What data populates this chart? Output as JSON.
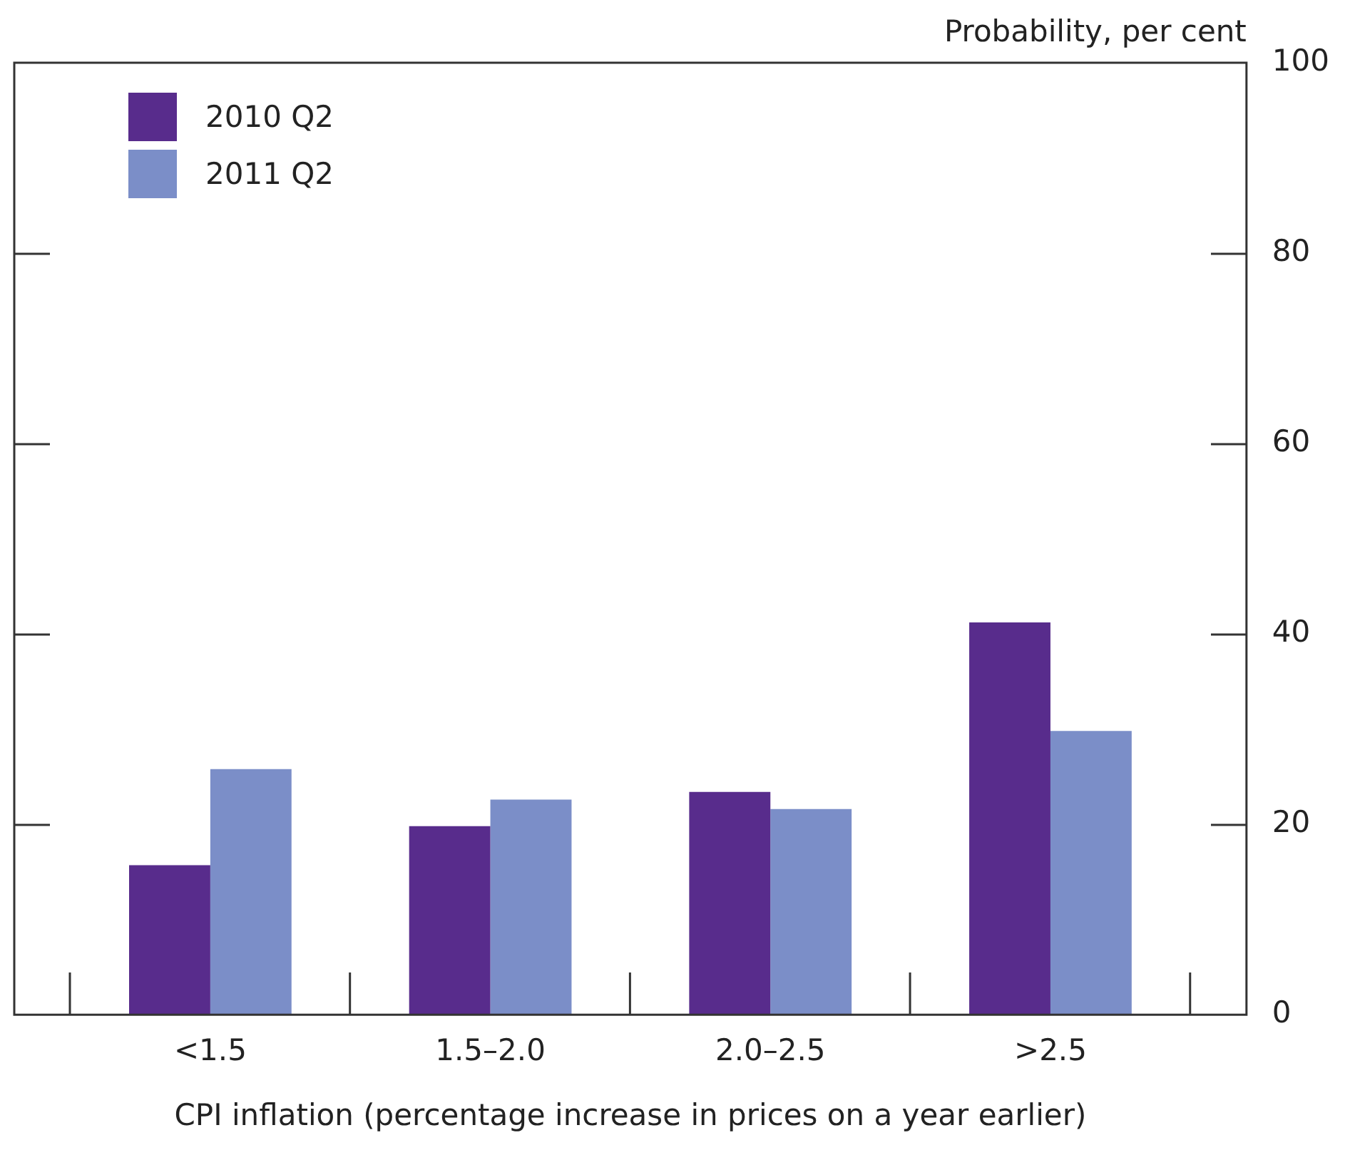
{
  "chart_data": {
    "type": "bar",
    "xlabel": "CPI inflation (percentage increase in prices on a year earlier)",
    "ylabel": "Probability, per cent",
    "categories": [
      "<1.5",
      "1.5–2.0",
      "2.0–2.5",
      ">2.5"
    ],
    "series": [
      {
        "name": "2010 Q2",
        "color": "#582c8c",
        "values": [
          15.7,
          19.8,
          23.4,
          41.2
        ]
      },
      {
        "name": "2011 Q2",
        "color": "#7b8ec8",
        "values": [
          25.8,
          22.6,
          21.6,
          29.8
        ]
      }
    ],
    "ylim": [
      0,
      100
    ],
    "yticks": [
      0,
      20,
      40,
      60,
      80,
      100
    ],
    "grid": false,
    "legend": "top left"
  }
}
